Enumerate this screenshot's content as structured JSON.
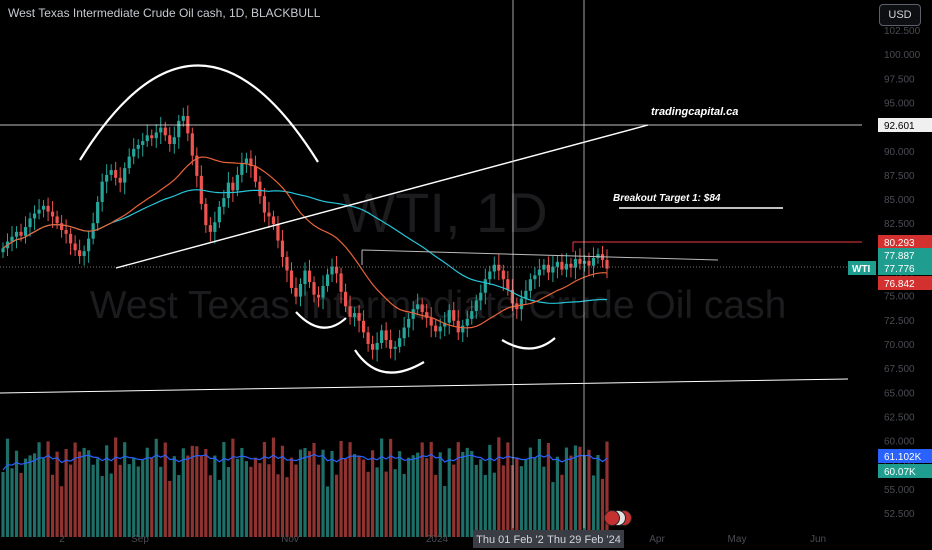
{
  "symbol_title": "West Texas Intermediate Crude Oil cash, 1D, BLACKBULL",
  "currency": "USD",
  "watermark": {
    "line1": "WTI, 1D",
    "line2": "West Texas Intermediate Crude Oil cash"
  },
  "colors": {
    "background": "#000000",
    "up": "#26a69a",
    "down": "#ef5350",
    "ma_teal": "#26c6da",
    "ma_orange": "#e8633a",
    "volume_ma": "#2962ff",
    "drawing": "#ffffff",
    "red_level": "#f23645"
  },
  "annotations": {
    "watermark_site": "tradingcapital.ca",
    "breakout_target": "Breakout Target 1: $84"
  },
  "chart_data": {
    "type": "candlestick",
    "title": "West Texas Intermediate Crude Oil cash, 1D, BLACKBULL",
    "yaxis_ticks": [
      "102.500",
      "100.000",
      "97.500",
      "95.000",
      "92.500",
      "90.000",
      "87.500",
      "85.000",
      "82.500",
      "80.000",
      "77.500",
      "75.000",
      "72.500",
      "70.000",
      "67.500",
      "65.000",
      "62.500",
      "60.000",
      "57.500",
      "55.000",
      "52.500"
    ],
    "xaxis_ticks": [
      "2",
      "Sep",
      "Nov",
      "2024",
      "Apr",
      "May",
      "Jun"
    ],
    "crosshair_x_labels": [
      "Thu 01 Feb '24",
      "Thu 29 Feb '24"
    ],
    "price_labels": [
      {
        "value": "92.601",
        "style": "dark"
      },
      {
        "value": "80.293",
        "style": "red"
      },
      {
        "value": "77.887",
        "style": "teal"
      },
      {
        "value": "77.776",
        "style": "teal",
        "tag": "WTI"
      },
      {
        "value": "76.842",
        "style": "red"
      },
      {
        "value": "61.102K",
        "style": "blue"
      },
      {
        "value": "60.07K",
        "style": "teal"
      }
    ],
    "ohlc_close_series": [
      79.9,
      80.6,
      81.1,
      81.6,
      81.2,
      82.1,
      83.0,
      83.5,
      83.9,
      84.3,
      83.7,
      83.2,
      82.5,
      81.8,
      81.4,
      80.4,
      79.7,
      79.1,
      79.6,
      80.9,
      82.5,
      84.7,
      86.8,
      87.5,
      88.0,
      87.2,
      86.7,
      88.2,
      89.4,
      90.2,
      90.6,
      91.0,
      91.6,
      91.3,
      91.9,
      92.4,
      91.6,
      90.7,
      91.4,
      93.1,
      93.6,
      91.8,
      89.5,
      87.4,
      84.5,
      82.3,
      81.6,
      82.6,
      84.2,
      85.1,
      86.7,
      85.9,
      87.5,
      88.7,
      89.2,
      88.4,
      86.8,
      85.3,
      83.6,
      83.2,
      82.4,
      80.7,
      79.0,
      77.6,
      75.8,
      74.9,
      76.2,
      77.6,
      76.4,
      75.1,
      74.8,
      76.0,
      77.2,
      78.0,
      77.3,
      75.4,
      73.9,
      72.8,
      73.2,
      72.4,
      71.2,
      70.0,
      69.4,
      70.1,
      71.4,
      70.4,
      69.5,
      69.7,
      70.6,
      71.7,
      72.6,
      73.6,
      74.1,
      73.3,
      72.7,
      71.9,
      71.3,
      71.8,
      72.2,
      73.5,
      72.4,
      71.2,
      71.9,
      72.6,
      73.4,
      74.5,
      75.3,
      76.7,
      77.5,
      78.2,
      77.6,
      76.7,
      75.6,
      74.2,
      73.6,
      74.7,
      75.5,
      76.7,
      77.1,
      77.7,
      78.2,
      77.4,
      78.0,
      78.5,
      77.7,
      78.3,
      77.9,
      78.8,
      78.3,
      78.6,
      78.1,
      78.9,
      79.3,
      78.7,
      77.8
    ],
    "moving_averages": [
      {
        "name": "",
        "color": "teal"
      },
      {
        "name": "",
        "color": "orange"
      }
    ],
    "volume": {
      "ma_color": "blue"
    },
    "drawings": [
      "head-and-shoulders arcs",
      "rising trendline",
      "neckline",
      "horizontal levels"
    ]
  }
}
